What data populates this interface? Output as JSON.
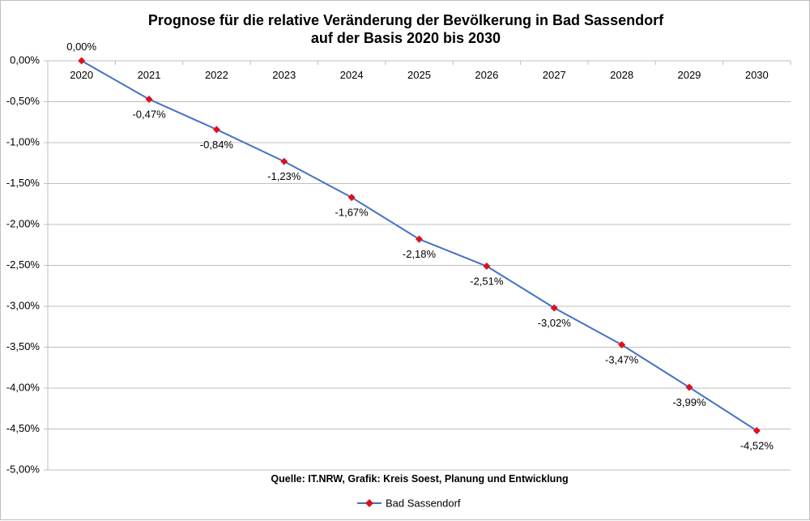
{
  "chart_data": {
    "type": "line",
    "title": "Prognose für die relative Veränderung der Bevölkerung in Bad Sassendorf",
    "subtitle": "auf der Basis 2020 bis 2030",
    "categories": [
      "2020",
      "2021",
      "2022",
      "2023",
      "2024",
      "2025",
      "2026",
      "2027",
      "2028",
      "2029",
      "2030"
    ],
    "series": [
      {
        "name": "Bad Sassendorf",
        "values": [
          0.0,
          -0.47,
          -0.84,
          -1.23,
          -1.67,
          -2.18,
          -2.51,
          -3.02,
          -3.47,
          -3.99,
          -4.52
        ],
        "labels": [
          "0,00%",
          "-0,47%",
          "-0,84%",
          "-1,23%",
          "-1,67%",
          "-2,18%",
          "-2,51%",
          "-3,02%",
          "-3,47%",
          "-3,99%",
          "-4,52%"
        ],
        "line_color": "#4472C4",
        "marker_color": "#E0101A"
      }
    ],
    "ylim": [
      -5.0,
      0.0
    ],
    "yticks": [
      0.0,
      -0.5,
      -1.0,
      -1.5,
      -2.0,
      -2.5,
      -3.0,
      -3.5,
      -4.0,
      -4.5,
      -5.0
    ],
    "ytick_labels": [
      "0,00%",
      "-0,50%",
      "-1,00%",
      "-1,50%",
      "-2,00%",
      "-2,50%",
      "-3,00%",
      "-3,50%",
      "-4,00%",
      "-4,50%",
      "-5,00%"
    ],
    "grid": true,
    "xlabel": "",
    "ylabel": "",
    "legend_position": "bottom",
    "source": "Quelle: IT.NRW, Grafik: Kreis Soest, Planung und Entwicklung",
    "gridline_color": "#BFBFBF"
  }
}
